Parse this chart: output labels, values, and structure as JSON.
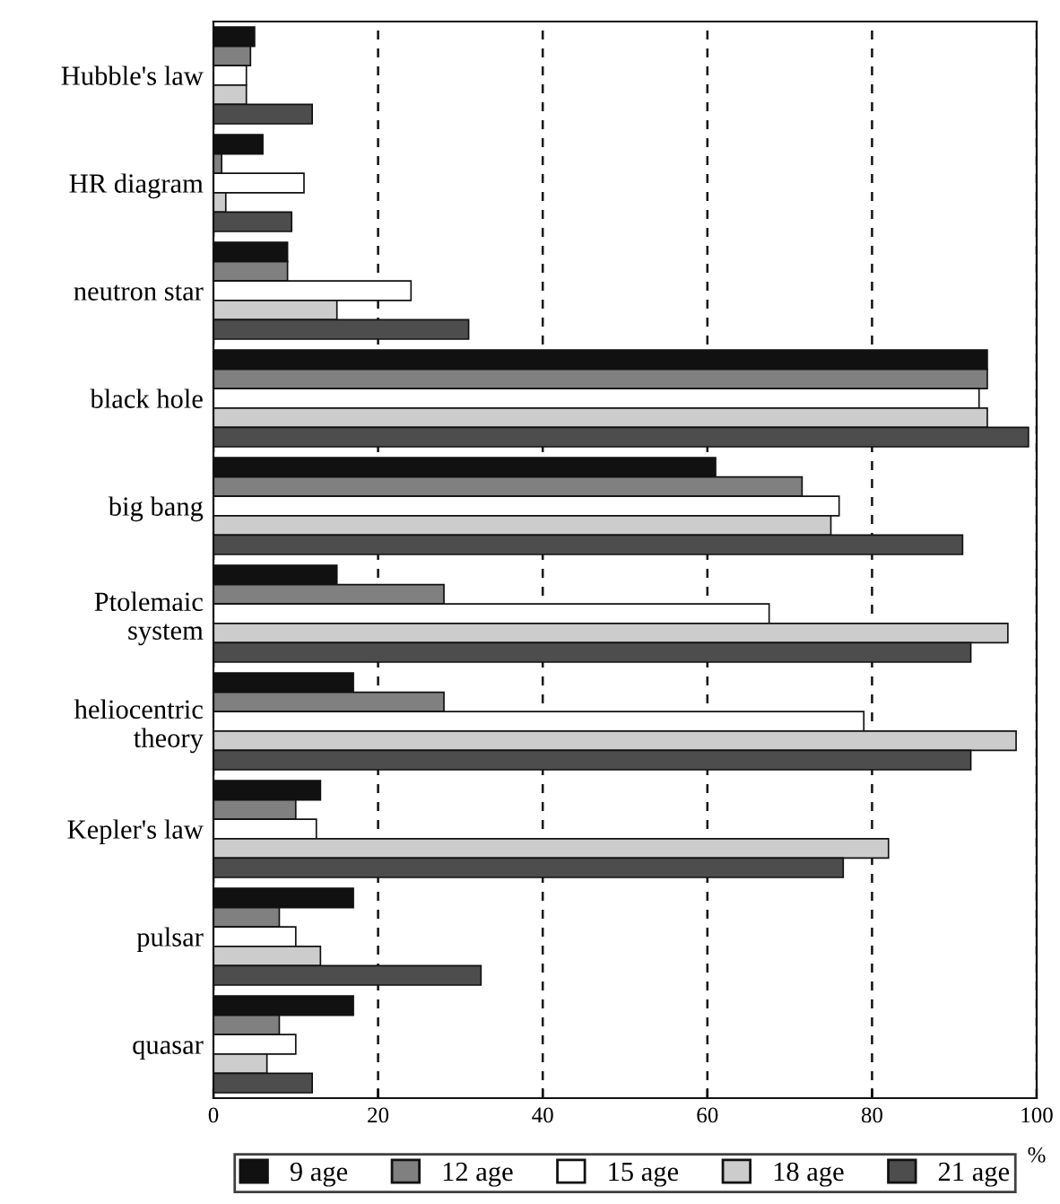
{
  "chart_data": {
    "type": "bar",
    "orientation": "horizontal",
    "xlabel": "%",
    "categories": [
      "Hubble's law",
      "HR diagram",
      "neutron star",
      "black hole",
      "big bang",
      "Ptolemaic\nsystem",
      "heliocentric\ntheory",
      "Kepler's law",
      "pulsar",
      "quasar"
    ],
    "series": [
      {
        "name": "9 age",
        "color": "#111111",
        "values": [
          5,
          6,
          9,
          94,
          61,
          15,
          17,
          13,
          17,
          17
        ]
      },
      {
        "name": "12 age",
        "color": "#808080",
        "values": [
          4.5,
          1,
          9,
          94,
          71.5,
          28,
          28,
          10,
          8,
          8
        ]
      },
      {
        "name": "15 age",
        "color": "#ffffff",
        "values": [
          4,
          11,
          24,
          93,
          76,
          67.5,
          79,
          12.5,
          10,
          10
        ]
      },
      {
        "name": "18 age",
        "color": "#cccccc",
        "values": [
          4,
          1.5,
          15,
          94,
          75,
          96.5,
          97.5,
          82,
          13,
          6.5
        ]
      },
      {
        "name": "21 age",
        "color": "#4d4d4d",
        "values": [
          12,
          9.5,
          31,
          99,
          91,
          92,
          92,
          76.5,
          32.5,
          12
        ]
      }
    ],
    "xlim": [
      0,
      100
    ],
    "xticks": [
      0,
      20,
      40,
      60,
      80,
      100
    ],
    "grid": "x",
    "legend": "bottom"
  }
}
